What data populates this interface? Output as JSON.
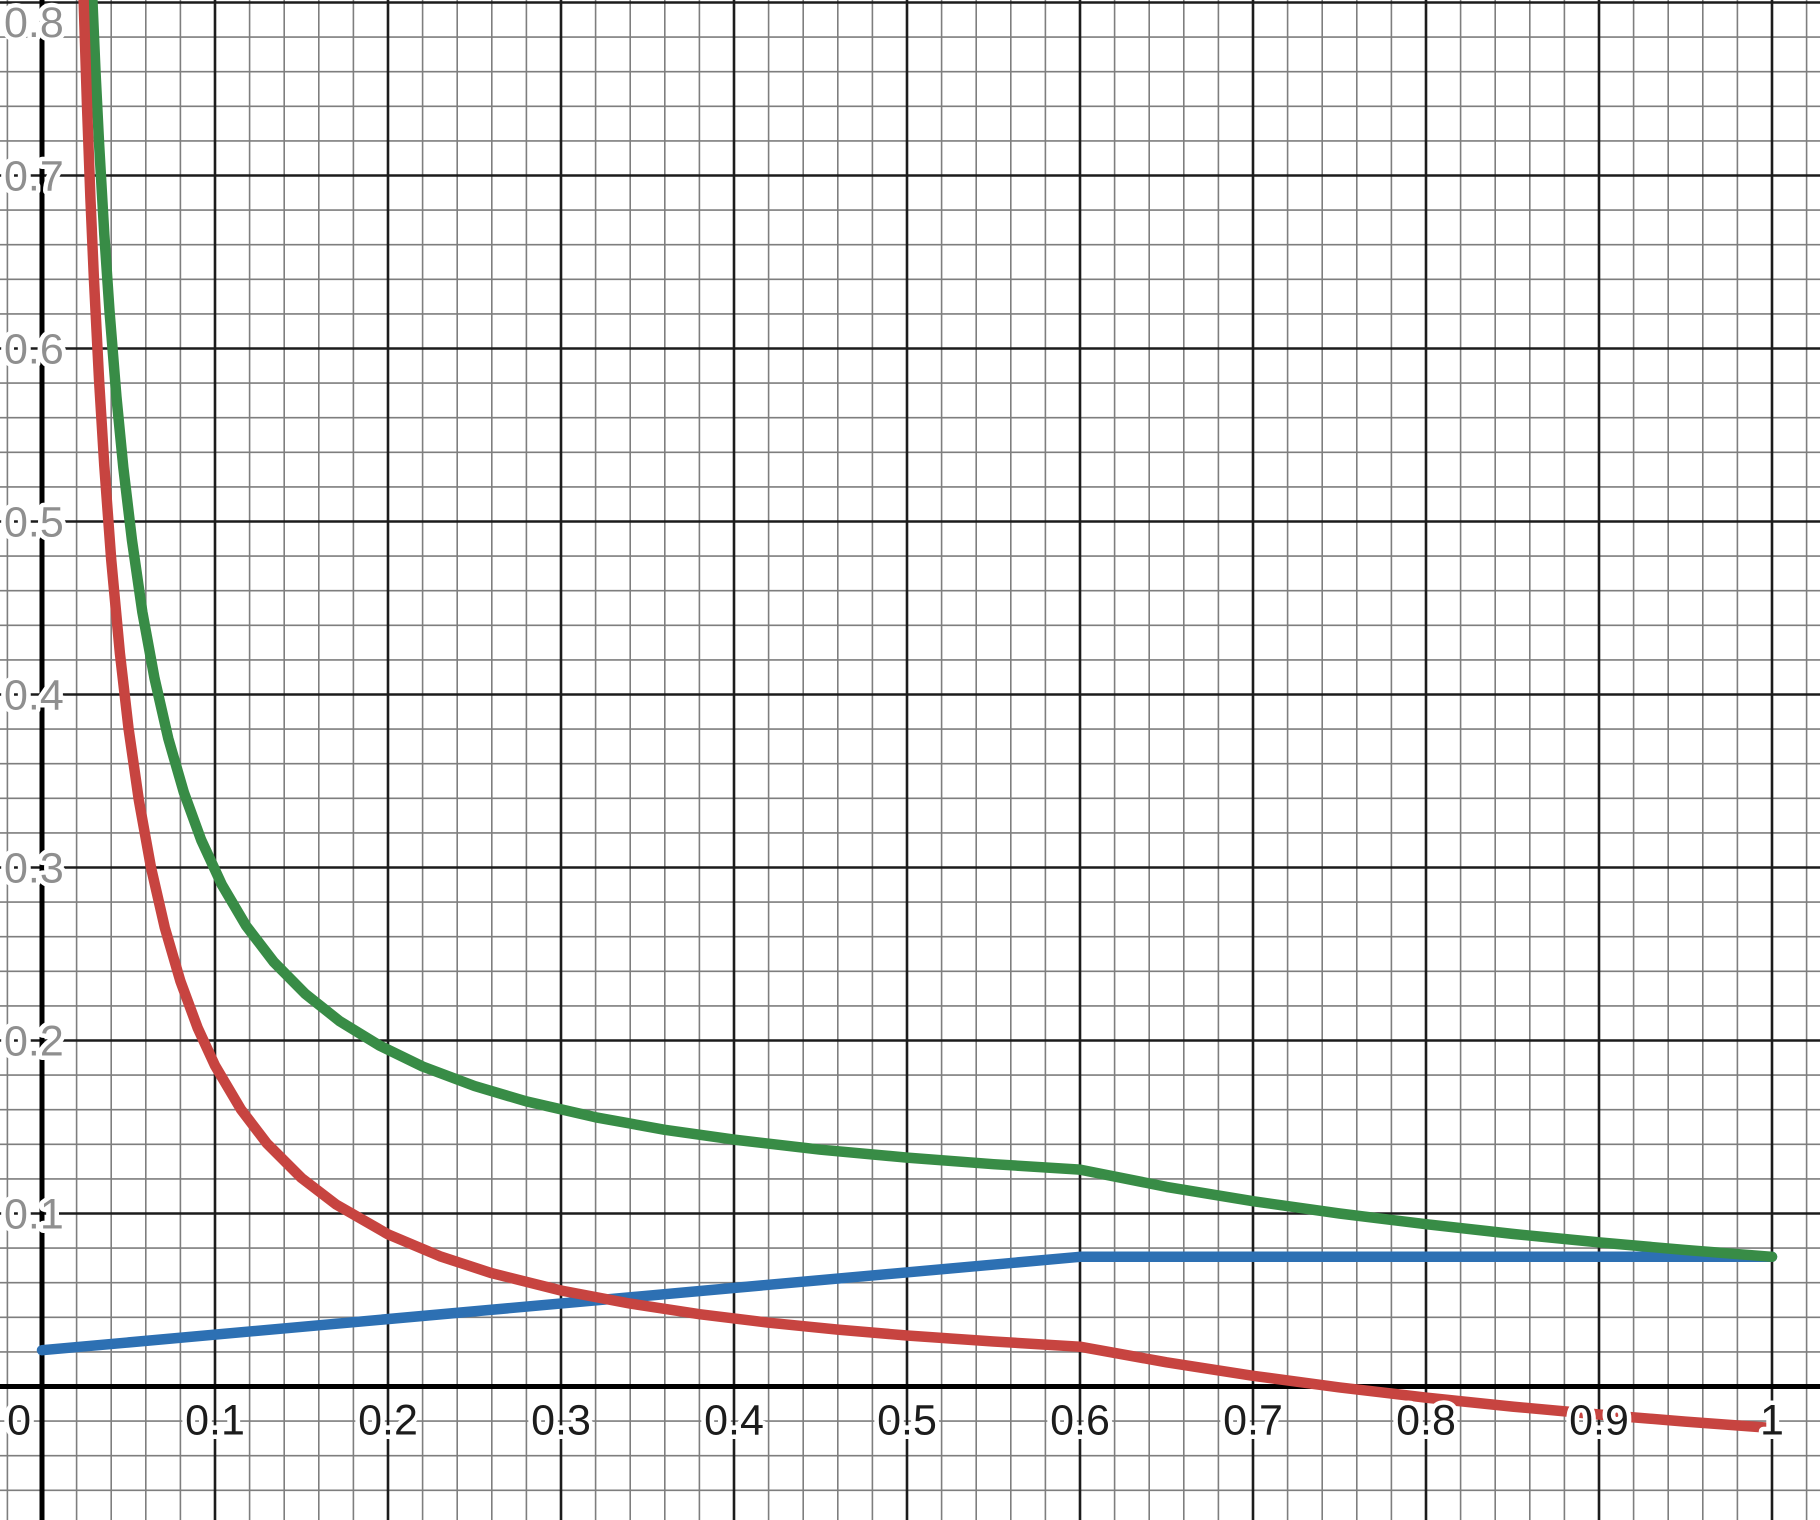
{
  "chart_data": {
    "type": "line",
    "title": "",
    "xlabel": "",
    "ylabel": "",
    "x_axis": {
      "min": -0.0242775,
      "max": 1.0277457,
      "minor_step": 0.02,
      "major_step": 0.1,
      "tick_values": [
        0,
        0.1,
        0.2,
        0.3,
        0.4,
        0.5,
        0.6,
        0.7,
        0.8,
        0.9,
        1
      ],
      "tick_labels": [
        "0",
        "0.1",
        "0.2",
        "0.3",
        "0.4",
        "0.5",
        "0.6",
        "0.7",
        "0.8",
        "0.9",
        "1"
      ]
    },
    "y_axis": {
      "min": -0.0771676,
      "max": 0.8014451,
      "minor_step": 0.02,
      "major_step": 0.1,
      "tick_values": [
        0.1,
        0.2,
        0.3,
        0.4,
        0.5,
        0.6,
        0.7,
        0.8
      ],
      "tick_labels": [
        "0.1",
        "0.2",
        "0.3",
        "0.4",
        "0.5",
        "0.6",
        "0.7",
        "0.8"
      ]
    },
    "grid": {
      "shown": true,
      "minor_color": "#7e7e7e",
      "major_color": "#1c1c1c",
      "axis_color": "#000000",
      "minor_width": 1.6,
      "major_width": 2.6,
      "axis_width": 5
    },
    "label_style": {
      "x_label_color": "#1c1c1c",
      "y_label_color": "#8f8f8f",
      "halo_color": "#ffffff",
      "font_size": 43
    },
    "legend": {
      "shown": false
    },
    "series": [
      {
        "name": "blue-piecewise-line",
        "color": "#2d70b3",
        "stroke_width": 10.5,
        "description": "rises linearly from (0,0.021) to kink at (0.6,0.075), then constant 0.075 to x=1",
        "points": [
          [
            0,
            0.021
          ],
          [
            0.6,
            0.075
          ],
          [
            1.0,
            0.075
          ]
        ]
      },
      {
        "name": "green-hyperbola",
        "color": "#388c46",
        "stroke_width": 10.5,
        "description": "~0.021/x+0.091 down to kink at (0.6,0.125), then ~0.075/x ending at (1,0.075)",
        "points": [
          [
            0.0273,
            0.85
          ],
          [
            0.0292,
            0.8
          ],
          [
            0.031,
            0.7587
          ],
          [
            0.033,
            0.7182
          ],
          [
            0.036,
            0.6659
          ],
          [
            0.039,
            0.6217
          ],
          [
            0.043,
            0.5723
          ],
          [
            0.047,
            0.5313
          ],
          [
            0.052,
            0.489
          ],
          [
            0.058,
            0.4478
          ],
          [
            0.065,
            0.4094
          ],
          [
            0.073,
            0.3745
          ],
          [
            0.082,
            0.3433
          ],
          [
            0.092,
            0.3159
          ],
          [
            0.104,
            0.29
          ],
          [
            0.118,
            0.2663
          ],
          [
            0.134,
            0.2454
          ],
          [
            0.152,
            0.2271
          ],
          [
            0.172,
            0.2112
          ],
          [
            0.195,
            0.1971
          ],
          [
            0.22,
            0.185
          ],
          [
            0.25,
            0.1737
          ],
          [
            0.28,
            0.1648
          ],
          [
            0.32,
            0.1556
          ],
          [
            0.36,
            0.1484
          ],
          [
            0.4,
            0.1427
          ],
          [
            0.45,
            0.1369
          ],
          [
            0.5,
            0.1323
          ],
          [
            0.55,
            0.1285
          ],
          [
            0.6,
            0.1254
          ],
          [
            0.65,
            0.1154
          ],
          [
            0.7,
            0.1071
          ],
          [
            0.75,
            0.1
          ],
          [
            0.8,
            0.0938
          ],
          [
            0.85,
            0.0882
          ],
          [
            0.9,
            0.0833
          ],
          [
            0.95,
            0.0789
          ],
          [
            1.0,
            0.075
          ]
        ]
      },
      {
        "name": "red-hyperbola",
        "color": "#c74440",
        "stroke_width": 10.5,
        "description": "~0.0195/x-0.0095 down to kink at (0.6,0.023), then convex tail crossing y=0 near x=0.75 and ending at (1,-0.024)",
        "points": [
          [
            0.0227,
            0.85
          ],
          [
            0.0241,
            0.8
          ],
          [
            0.026,
            0.7405
          ],
          [
            0.028,
            0.687
          ],
          [
            0.03,
            0.6405
          ],
          [
            0.033,
            0.5814
          ],
          [
            0.036,
            0.5322
          ],
          [
            0.04,
            0.478
          ],
          [
            0.045,
            0.4238
          ],
          [
            0.05,
            0.3805
          ],
          [
            0.056,
            0.3387
          ],
          [
            0.063,
            0.3
          ],
          [
            0.071,
            0.2652
          ],
          [
            0.08,
            0.2343
          ],
          [
            0.09,
            0.2072
          ],
          [
            0.1,
            0.1855
          ],
          [
            0.115,
            0.1601
          ],
          [
            0.13,
            0.1405
          ],
          [
            0.15,
            0.1205
          ],
          [
            0.17,
            0.1052
          ],
          [
            0.2,
            0.088
          ],
          [
            0.23,
            0.0753
          ],
          [
            0.26,
            0.0655
          ],
          [
            0.3,
            0.0555
          ],
          [
            0.34,
            0.0479
          ],
          [
            0.38,
            0.0418
          ],
          [
            0.42,
            0.0369
          ],
          [
            0.46,
            0.0329
          ],
          [
            0.5,
            0.0295
          ],
          [
            0.55,
            0.026
          ],
          [
            0.6,
            0.023
          ],
          [
            0.65,
            0.014
          ],
          [
            0.7,
            0.0062
          ],
          [
            0.75,
            -0.0005
          ],
          [
            0.8,
            -0.0064
          ],
          [
            0.85,
            -0.0116
          ],
          [
            0.9,
            -0.0162
          ],
          [
            0.95,
            -0.0203
          ],
          [
            1.0,
            -0.024
          ]
        ]
      }
    ]
  }
}
